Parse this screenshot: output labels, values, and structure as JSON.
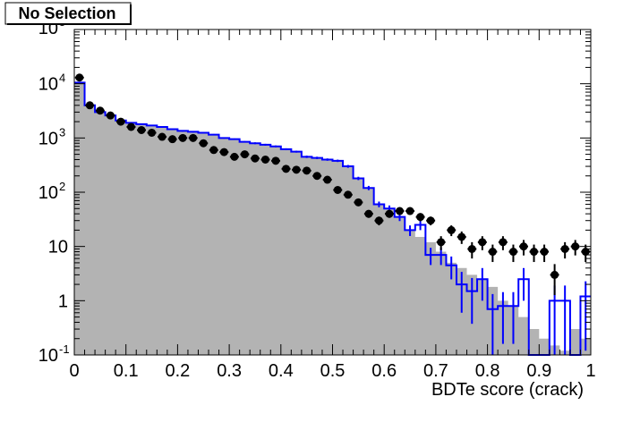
{
  "chart_data": {
    "type": "bar",
    "title": "No Selection",
    "xlabel": "BDTe score (crack)",
    "ylabel": "",
    "xlim": [
      0,
      1
    ],
    "ylim": [
      0.1,
      100000
    ],
    "y_scale": "log",
    "x_ticks": [
      "0",
      "0.1",
      "0.2",
      "0.3",
      "0.4",
      "0.5",
      "0.6",
      "0.7",
      "0.8",
      "0.9",
      "1"
    ],
    "y_ticks": [
      {
        "value": 0.1,
        "base": "10",
        "exp": "-1"
      },
      {
        "value": 1,
        "base": "1",
        "exp": ""
      },
      {
        "value": 10,
        "base": "10",
        "exp": ""
      },
      {
        "value": 100,
        "base": "10",
        "exp": "2"
      },
      {
        "value": 1000,
        "base": "10",
        "exp": "3"
      },
      {
        "value": 10000,
        "base": "10",
        "exp": "4"
      },
      {
        "value": 100000,
        "base": "10",
        "exp": "5"
      }
    ],
    "bin_edges": [
      0,
      0.02,
      0.04,
      0.06,
      0.08,
      0.1,
      0.12,
      0.14,
      0.16,
      0.18,
      0.2,
      0.22,
      0.24,
      0.26,
      0.28,
      0.3,
      0.32,
      0.34,
      0.36,
      0.38,
      0.4,
      0.42,
      0.44,
      0.46,
      0.48,
      0.5,
      0.52,
      0.54,
      0.56,
      0.58,
      0.6,
      0.62,
      0.64,
      0.66,
      0.68,
      0.7,
      0.72,
      0.74,
      0.76,
      0.78,
      0.8,
      0.82,
      0.84,
      0.86,
      0.88,
      0.9,
      0.92,
      0.94,
      0.96,
      0.98,
      1.0
    ],
    "series": [
      {
        "kind": "filled-histogram",
        "fill_color": "#b3b3b3",
        "values": [
          10500,
          4000,
          3000,
          2600,
          2100,
          1900,
          1800,
          1700,
          1600,
          1450,
          1350,
          1300,
          1250,
          1150,
          1000,
          950,
          850,
          800,
          750,
          700,
          620,
          560,
          450,
          430,
          400,
          380,
          300,
          180,
          120,
          60,
          50,
          35,
          20,
          15,
          12,
          8,
          5,
          4,
          3,
          2.5,
          1.8,
          1.0,
          0.8,
          0.5,
          0.3,
          0.2,
          0.15,
          0.12,
          0.3,
          0.2
        ]
      },
      {
        "kind": "line-histogram-with-errors",
        "line_color": "#0000ff",
        "values": [
          10500,
          4000,
          3000,
          2600,
          2100,
          1900,
          1800,
          1700,
          1600,
          1450,
          1350,
          1300,
          1250,
          1150,
          1000,
          950,
          850,
          800,
          750,
          700,
          620,
          560,
          450,
          430,
          400,
          380,
          300,
          180,
          120,
          60,
          50,
          35,
          20,
          25,
          7,
          7,
          4.5,
          2.0,
          1.5,
          2.5,
          0.7,
          0.8,
          0.8,
          2.5,
          0.1,
          0.1,
          1.0,
          1.0,
          0.1,
          1.2
        ],
        "errors_rel": [
          0.01,
          0.02,
          0.02,
          0.02,
          0.02,
          0.02,
          0.02,
          0.02,
          0.02,
          0.03,
          0.03,
          0.03,
          0.03,
          0.03,
          0.03,
          0.03,
          0.03,
          0.04,
          0.04,
          0.04,
          0.04,
          0.04,
          0.05,
          0.05,
          0.05,
          0.05,
          0.06,
          0.07,
          0.09,
          0.12,
          0.14,
          0.16,
          0.22,
          0.2,
          0.35,
          0.35,
          0.45,
          0.7,
          0.75,
          0.6,
          0.9,
          0.8,
          0.8,
          0.6,
          0.0,
          0.0,
          0.9,
          0.9,
          0.0,
          0.9
        ]
      },
      {
        "kind": "markers-with-errors",
        "marker_color": "#000000",
        "values": [
          13000,
          4000,
          3200,
          2600,
          2000,
          1600,
          1400,
          1250,
          1050,
          950,
          1000,
          1000,
          800,
          600,
          550,
          450,
          500,
          420,
          400,
          380,
          270,
          260,
          250,
          200,
          170,
          110,
          90,
          65,
          40,
          30,
          40,
          45,
          45,
          35,
          30,
          12,
          20,
          15,
          9,
          12,
          8,
          12,
          8,
          10,
          8,
          8,
          3,
          9,
          10,
          8
        ]
      }
    ]
  }
}
